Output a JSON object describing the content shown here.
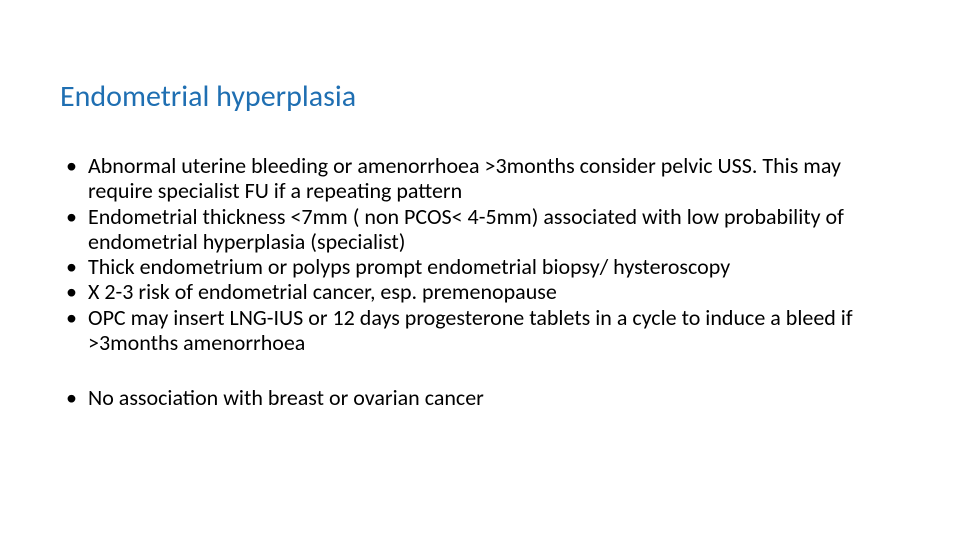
{
  "slide": {
    "title": "Endometrial hyperplasia",
    "title_color": "#1f6fb2",
    "title_fontsize": 30,
    "body_fontsize": 22,
    "body_color": "#000000",
    "background_color": "#ffffff",
    "bullets_group1": [
      "Abnormal uterine bleeding or amenorrhoea >3months consider pelvic USS. This may require specialist FU if a repeating pattern",
      "Endometrial thickness <7mm ( non PCOS< 4-5mm) associated with low probability of endometrial hyperplasia (specialist)",
      "Thick endometrium or polyps prompt endometrial biopsy/ hysteroscopy",
      "X 2-3 risk of endometrial cancer, esp. premenopause",
      "OPC may insert LNG-IUS or 12 days progesterone tablets in a cycle to induce a bleed if >3months amenorrhoea"
    ],
    "bullets_group2": [
      "No association with breast or ovarian cancer"
    ]
  }
}
